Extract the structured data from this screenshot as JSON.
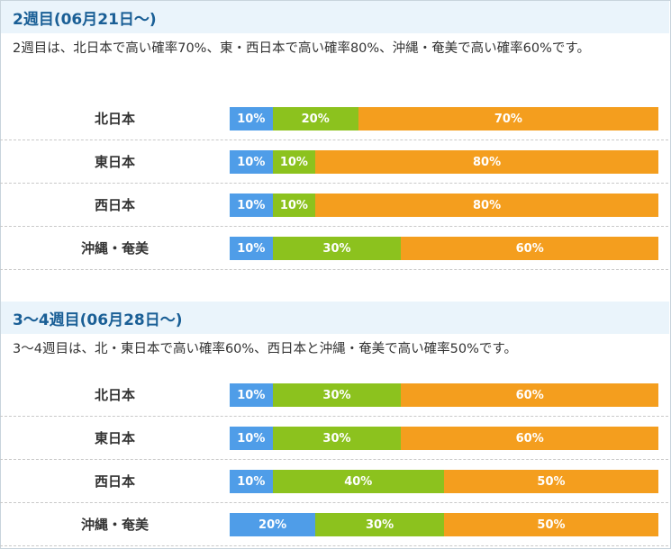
{
  "colors": {
    "low": "#4f9de8",
    "mid": "#8cc21e",
    "high": "#f49e1e",
    "header_bg": "#eaf4fb",
    "header_text": "#1a5f96"
  },
  "sections": [
    {
      "title": "2週目(06月21日～)",
      "description": "2週目は、北日本で高い確率70%、東・西日本で高い確率80%、沖縄・奄美で高い確率60%です。",
      "rows": [
        {
          "region": "北日本",
          "low": 10,
          "mid": 20,
          "high": 70,
          "low_label": "10%",
          "mid_label": "20%",
          "high_label": "70%"
        },
        {
          "region": "東日本",
          "low": 10,
          "mid": 10,
          "high": 80,
          "low_label": "10%",
          "mid_label": "10%",
          "high_label": "80%"
        },
        {
          "region": "西日本",
          "low": 10,
          "mid": 10,
          "high": 80,
          "low_label": "10%",
          "mid_label": "10%",
          "high_label": "80%"
        },
        {
          "region": "沖縄・奄美",
          "low": 10,
          "mid": 30,
          "high": 60,
          "low_label": "10%",
          "mid_label": "30%",
          "high_label": "60%"
        }
      ]
    },
    {
      "title": "3～4週目(06月28日～)",
      "description": "3～4週目は、北・東日本で高い確率60%、西日本と沖縄・奄美で高い確率50%です。",
      "rows": [
        {
          "region": "北日本",
          "low": 10,
          "mid": 30,
          "high": 60,
          "low_label": "10%",
          "mid_label": "30%",
          "high_label": "60%"
        },
        {
          "region": "東日本",
          "low": 10,
          "mid": 30,
          "high": 60,
          "low_label": "10%",
          "mid_label": "30%",
          "high_label": "60%"
        },
        {
          "region": "西日本",
          "low": 10,
          "mid": 40,
          "high": 50,
          "low_label": "10%",
          "mid_label": "40%",
          "high_label": "50%"
        },
        {
          "region": "沖縄・奄美",
          "low": 20,
          "mid": 30,
          "high": 50,
          "low_label": "20%",
          "mid_label": "30%",
          "high_label": "50%"
        }
      ]
    }
  ]
}
